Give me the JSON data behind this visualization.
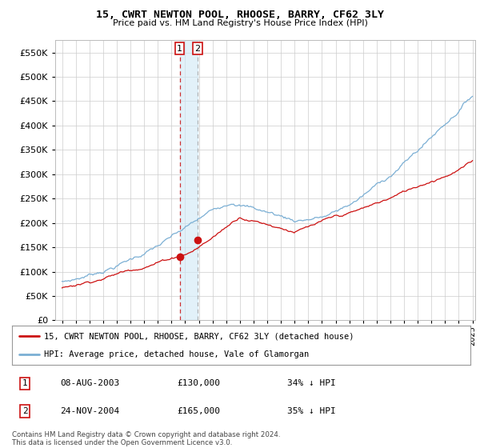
{
  "title": "15, CWRT NEWTON POOL, RHOOSE, BARRY, CF62 3LY",
  "subtitle": "Price paid vs. HM Land Registry's House Price Index (HPI)",
  "ylim": [
    0,
    575000
  ],
  "yticks": [
    0,
    50000,
    100000,
    150000,
    200000,
    250000,
    300000,
    350000,
    400000,
    450000,
    500000,
    550000
  ],
  "hpi_color": "#7bafd4",
  "price_color": "#cc1111",
  "transaction1_date": 2003.6,
  "transaction1_price": 130000,
  "transaction2_date": 2004.9,
  "transaction2_price": 165000,
  "xlim_left": 1994.5,
  "xlim_right": 2025.2,
  "legend_entries": [
    "15, CWRT NEWTON POOL, RHOOSE, BARRY, CF62 3LY (detached house)",
    "HPI: Average price, detached house, Vale of Glamorgan"
  ],
  "table_rows": [
    [
      "1",
      "08-AUG-2003",
      "£130,000",
      "34% ↓ HPI"
    ],
    [
      "2",
      "24-NOV-2004",
      "£165,000",
      "35% ↓ HPI"
    ]
  ],
  "footer": "Contains HM Land Registry data © Crown copyright and database right 2024.\nThis data is licensed under the Open Government Licence v3.0.",
  "background_color": "#ffffff",
  "grid_color": "#cccccc"
}
